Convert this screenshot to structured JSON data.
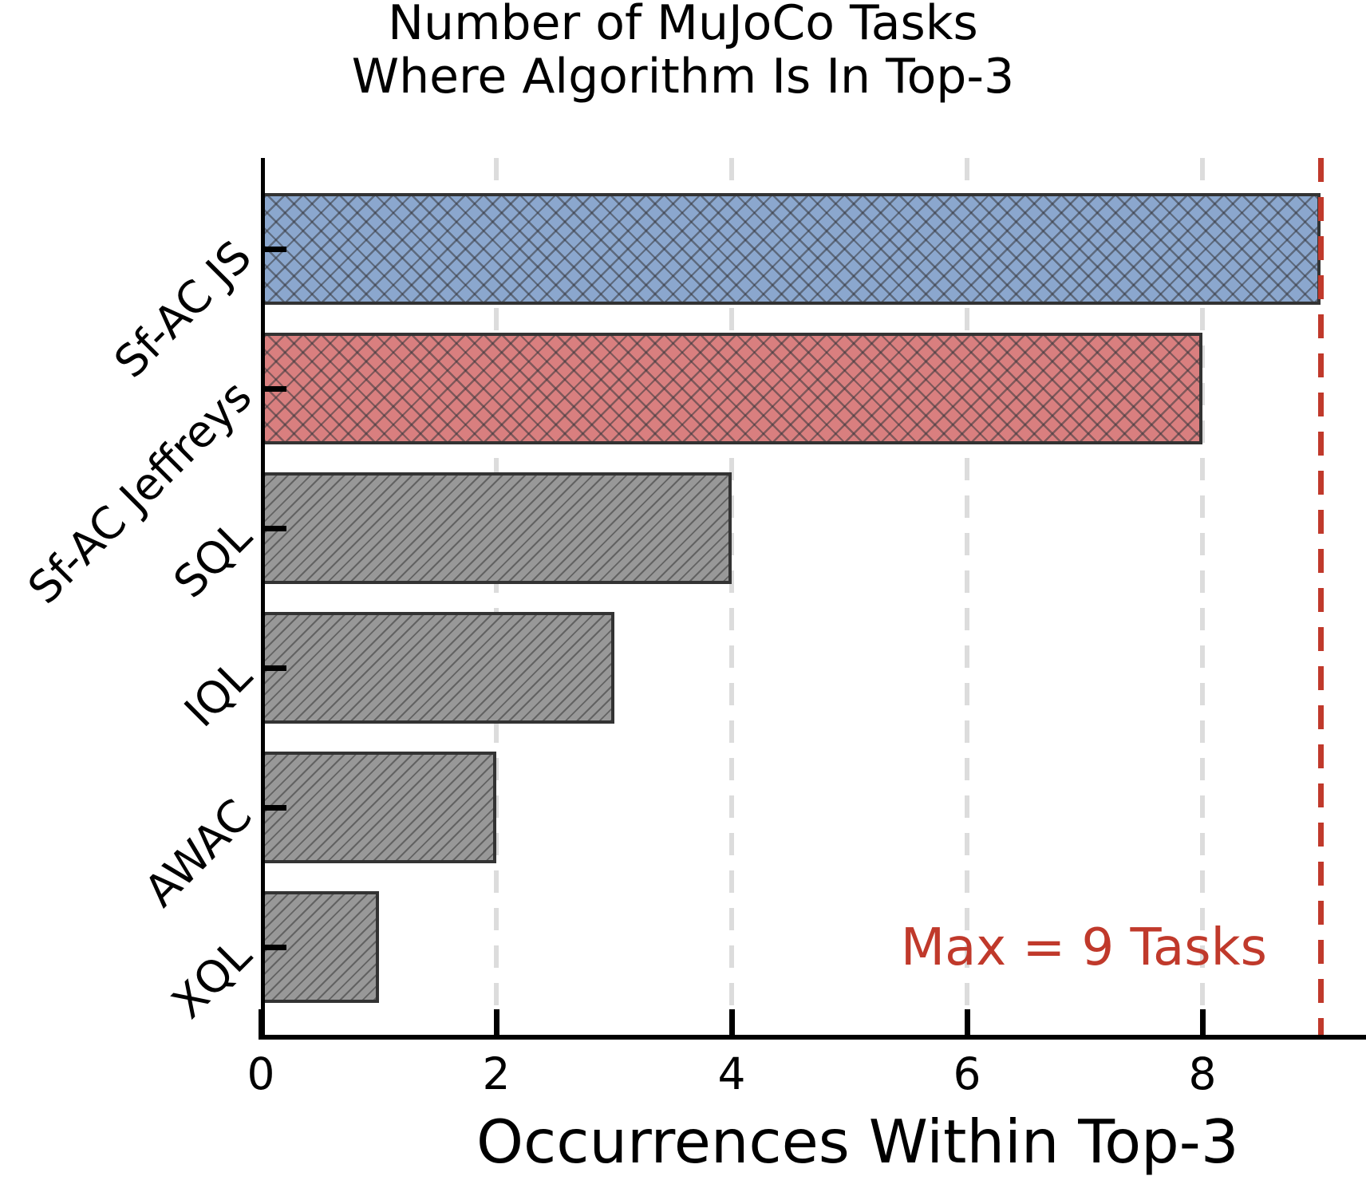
{
  "title": {
    "line1": "Number of MuJoCo Tasks",
    "line2": "Where Algorithm Is In Top-3"
  },
  "annotation": {
    "max_label": "Max = 9 Tasks"
  },
  "colors": {
    "accent_red": "#c0392b",
    "bar_blue": "#8ba7ce",
    "bar_red": "#d97f7f",
    "bar_gray": "#989898",
    "bar_edge": "#333333",
    "gridline": "#dcdcdc"
  },
  "chart_data": {
    "type": "bar",
    "orientation": "horizontal",
    "title": "Number of MuJoCo Tasks\nWhere Algorithm Is In Top-3",
    "xlabel": "Occurrences Within Top-3",
    "categories": [
      "Sf-AC JS",
      "Sf-AC Jeffreys",
      "SQL",
      "IQL",
      "AWAC",
      "XQL"
    ],
    "values": [
      9,
      8,
      4,
      3,
      2,
      1
    ],
    "bar_colors": [
      "#8ba7ce",
      "#d97f7f",
      "#989898",
      "#989898",
      "#989898",
      "#989898"
    ],
    "bar_hatches": [
      "xx",
      "xx",
      "//",
      "//",
      "//",
      "//"
    ],
    "xticks": [
      0,
      2,
      4,
      6,
      8
    ],
    "xtick_labels": [
      "0",
      "2",
      "4",
      "6",
      "8"
    ],
    "gridlines_at": [
      2,
      4,
      6,
      8
    ],
    "xlim": [
      0,
      9.4
    ],
    "grid": "dashed-vertical",
    "legend": "none",
    "max_line": {
      "value": 9,
      "style": "dashed",
      "color": "#c0392b",
      "label": "Max = 9 Tasks"
    }
  }
}
